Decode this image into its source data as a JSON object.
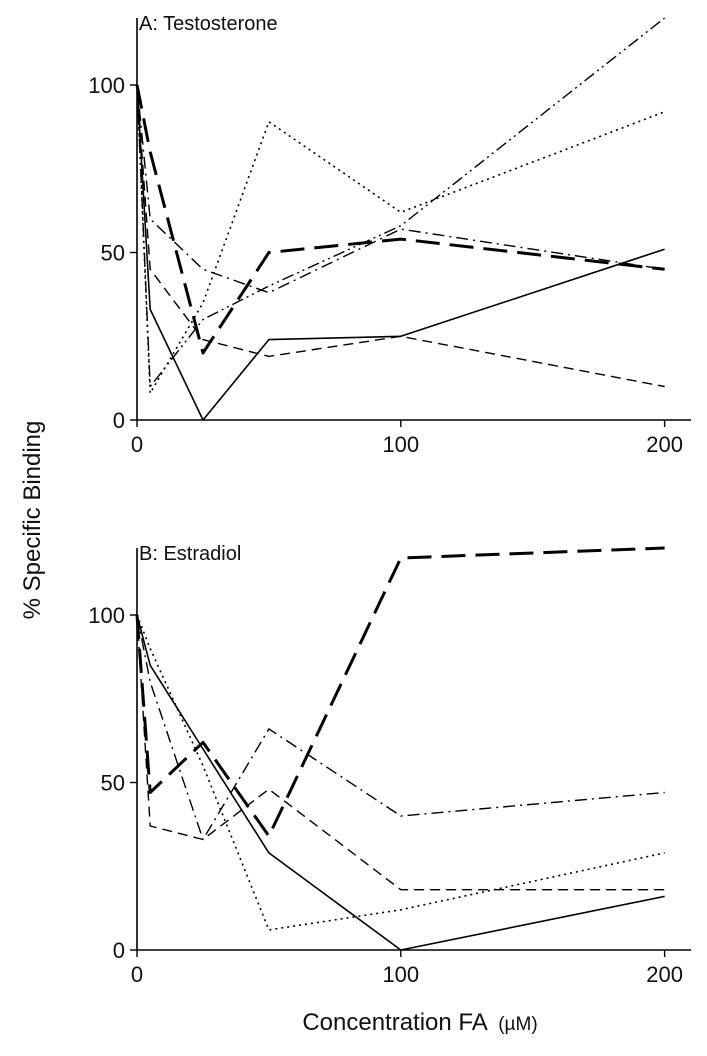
{
  "figure": {
    "ylabel": "% Specific Binding",
    "xlabel": "Concentration FA",
    "xlabel_unit": "(µM)"
  },
  "chart_data": [
    {
      "type": "line",
      "title": "A: Testosterone",
      "xlabel": "Concentration FA (µM)",
      "ylabel": "% Specific Binding",
      "xlim": [
        0,
        210
      ],
      "ylim": [
        0,
        120
      ],
      "x_ticks": [
        0,
        100,
        200
      ],
      "y_ticks": [
        0,
        50,
        100
      ],
      "grid": false,
      "series": [
        {
          "style": "solid",
          "x": [
            0,
            5,
            25,
            50,
            100,
            200
          ],
          "y": [
            100,
            33,
            0,
            24,
            25,
            51
          ]
        },
        {
          "style": "dashed",
          "x": [
            0,
            5,
            25,
            50,
            100,
            200
          ],
          "y": [
            100,
            45,
            24,
            19,
            25,
            10
          ]
        },
        {
          "style": "long-dash",
          "x": [
            0,
            5,
            25,
            50,
            100,
            200
          ],
          "y": [
            100,
            80,
            20,
            50,
            54,
            45
          ]
        },
        {
          "style": "dotted",
          "x": [
            0,
            5,
            25,
            50,
            100,
            200
          ],
          "y": [
            100,
            8,
            35,
            89,
            62,
            92
          ]
        },
        {
          "style": "dash-dot",
          "x": [
            0,
            5,
            25,
            50,
            100,
            200
          ],
          "y": [
            100,
            60,
            45,
            38,
            57,
            45
          ]
        },
        {
          "style": "dash-dot-dot",
          "x": [
            0,
            5,
            25,
            50,
            100,
            200
          ],
          "y": [
            100,
            10,
            30,
            40,
            58,
            120
          ]
        }
      ]
    },
    {
      "type": "line",
      "title": "B: Estradiol",
      "xlabel": "Concentration FA (µM)",
      "ylabel": "% Specific Binding",
      "xlim": [
        0,
        210
      ],
      "ylim": [
        0,
        120
      ],
      "x_ticks": [
        0,
        100,
        200
      ],
      "y_ticks": [
        0,
        50,
        100
      ],
      "grid": false,
      "series": [
        {
          "style": "solid",
          "x": [
            0,
            5,
            25,
            50,
            100,
            200
          ],
          "y": [
            100,
            85,
            60,
            29,
            0,
            16
          ]
        },
        {
          "style": "dashed",
          "x": [
            0,
            5,
            25,
            50,
            100,
            200
          ],
          "y": [
            100,
            37,
            33,
            48,
            18,
            18
          ]
        },
        {
          "style": "long-dash",
          "x": [
            0,
            5,
            25,
            50,
            100,
            200
          ],
          "y": [
            100,
            47,
            62,
            34,
            117,
            120
          ]
        },
        {
          "style": "dotted",
          "x": [
            0,
            5,
            25,
            50,
            100,
            200
          ],
          "y": [
            100,
            90,
            55,
            6,
            12,
            29
          ]
        },
        {
          "style": "dash-dot",
          "x": [
            0,
            5,
            25,
            50,
            100,
            200
          ],
          "y": [
            100,
            80,
            33,
            66,
            40,
            47
          ]
        }
      ]
    }
  ]
}
